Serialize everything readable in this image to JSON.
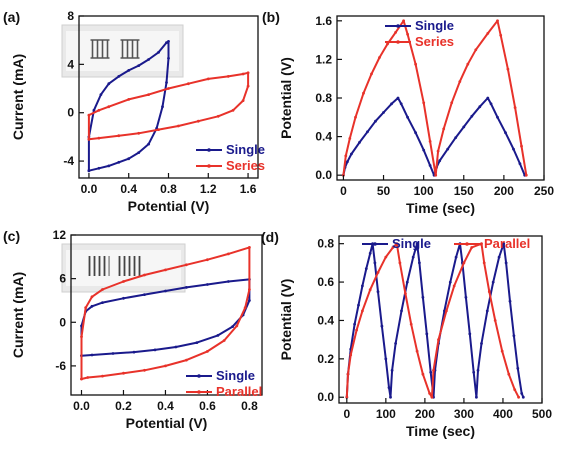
{
  "colors": {
    "single": "#1a1a8c",
    "other": "#e8322a",
    "axis": "#111111"
  },
  "chart_data": [
    {
      "id": "a",
      "panel_label": "(a)",
      "type": "line",
      "xlabel": "Potential (V)",
      "ylabel": "Current (mA)",
      "xlim": [
        -0.1,
        1.7
      ],
      "ylim": [
        -5.4,
        8
      ],
      "xticks": [
        0.0,
        0.4,
        0.8,
        1.2,
        1.6
      ],
      "xtick_labels": [
        "0.0",
        "0.4",
        "0.8",
        "1.2",
        "1.6"
      ],
      "yticks": [
        -4,
        0,
        4,
        8
      ],
      "ytick_labels": [
        "-4",
        "0",
        "4",
        "8"
      ],
      "inset_image": true,
      "inset_icon": "interdigitated-electrodes-in-series-icon",
      "legend_position": "bottom-right",
      "series": [
        {
          "name": "Single",
          "color_key": "single",
          "marker": "dot",
          "closed": true,
          "points": [
            [
              0.0,
              -4.8
            ],
            [
              0.0,
              -2.0
            ],
            [
              0.05,
              0.2
            ],
            [
              0.12,
              1.5
            ],
            [
              0.2,
              2.4
            ],
            [
              0.3,
              3.0
            ],
            [
              0.4,
              3.5
            ],
            [
              0.5,
              3.9
            ],
            [
              0.6,
              4.4
            ],
            [
              0.7,
              5.0
            ],
            [
              0.78,
              5.8
            ],
            [
              0.8,
              5.9
            ],
            [
              0.8,
              4.5
            ],
            [
              0.78,
              2.5
            ],
            [
              0.74,
              0.5
            ],
            [
              0.68,
              -1.3
            ],
            [
              0.6,
              -2.6
            ],
            [
              0.5,
              -3.3
            ],
            [
              0.4,
              -3.8
            ],
            [
              0.3,
              -4.1
            ],
            [
              0.2,
              -4.4
            ],
            [
              0.1,
              -4.6
            ],
            [
              0.0,
              -4.8
            ]
          ]
        },
        {
          "name": "Series",
          "color_key": "other",
          "marker": "dot",
          "closed": true,
          "points": [
            [
              0.0,
              -2.2
            ],
            [
              0.0,
              -0.2
            ],
            [
              0.1,
              0.2
            ],
            [
              0.2,
              0.5
            ],
            [
              0.4,
              1.1
            ],
            [
              0.6,
              1.5
            ],
            [
              0.8,
              2.0
            ],
            [
              1.0,
              2.4
            ],
            [
              1.2,
              2.8
            ],
            [
              1.4,
              3.0
            ],
            [
              1.55,
              3.2
            ],
            [
              1.6,
              3.3
            ],
            [
              1.6,
              2.2
            ],
            [
              1.55,
              1.0
            ],
            [
              1.45,
              0.2
            ],
            [
              1.3,
              -0.3
            ],
            [
              1.1,
              -0.7
            ],
            [
              0.9,
              -1.1
            ],
            [
              0.7,
              -1.4
            ],
            [
              0.5,
              -1.7
            ],
            [
              0.3,
              -1.9
            ],
            [
              0.1,
              -2.1
            ],
            [
              0.0,
              -2.2
            ]
          ]
        }
      ]
    },
    {
      "id": "b",
      "panel_label": "(b)",
      "type": "line",
      "xlabel": "Time (sec)",
      "ylabel": "Potential (V)",
      "xlim": [
        -8,
        250
      ],
      "ylim": [
        -0.05,
        1.65
      ],
      "xticks": [
        0,
        50,
        100,
        150,
        200,
        250
      ],
      "xtick_labels": [
        "0",
        "50",
        "100",
        "150",
        "200",
        "250"
      ],
      "yticks": [
        0.0,
        0.4,
        0.8,
        1.2,
        1.6
      ],
      "ytick_labels": [
        "0.0",
        "0.4",
        "0.8",
        "1.2",
        "1.6"
      ],
      "legend_position": "top-right",
      "series": [
        {
          "name": "Single",
          "color_key": "single",
          "marker": "dot",
          "points": [
            [
              0,
              0.0
            ],
            [
              2,
              0.08
            ],
            [
              5,
              0.14
            ],
            [
              10,
              0.22
            ],
            [
              20,
              0.34
            ],
            [
              30,
              0.45
            ],
            [
              40,
              0.56
            ],
            [
              50,
              0.65
            ],
            [
              60,
              0.74
            ],
            [
              68,
              0.8
            ],
            [
              72,
              0.74
            ],
            [
              80,
              0.6
            ],
            [
              90,
              0.44
            ],
            [
              100,
              0.26
            ],
            [
              108,
              0.1
            ],
            [
              113,
              0.0
            ],
            [
              116,
              0.08
            ],
            [
              120,
              0.15
            ],
            [
              130,
              0.27
            ],
            [
              140,
              0.39
            ],
            [
              150,
              0.5
            ],
            [
              160,
              0.61
            ],
            [
              170,
              0.71
            ],
            [
              180,
              0.8
            ],
            [
              184,
              0.74
            ],
            [
              192,
              0.6
            ],
            [
              202,
              0.44
            ],
            [
              212,
              0.27
            ],
            [
              220,
              0.12
            ],
            [
              226,
              0.0
            ]
          ]
        },
        {
          "name": "Series",
          "color_key": "other",
          "marker": "dot",
          "points": [
            [
              0,
              0.0
            ],
            [
              3,
              0.2
            ],
            [
              8,
              0.38
            ],
            [
              15,
              0.6
            ],
            [
              25,
              0.85
            ],
            [
              35,
              1.05
            ],
            [
              45,
              1.22
            ],
            [
              55,
              1.36
            ],
            [
              65,
              1.48
            ],
            [
              75,
              1.6
            ],
            [
              80,
              1.46
            ],
            [
              90,
              1.15
            ],
            [
              100,
              0.75
            ],
            [
              108,
              0.35
            ],
            [
              115,
              0.0
            ],
            [
              118,
              0.25
            ],
            [
              125,
              0.48
            ],
            [
              135,
              0.75
            ],
            [
              145,
              0.97
            ],
            [
              155,
              1.15
            ],
            [
              165,
              1.3
            ],
            [
              180,
              1.47
            ],
            [
              192,
              1.6
            ],
            [
              196,
              1.45
            ],
            [
              205,
              1.1
            ],
            [
              214,
              0.7
            ],
            [
              222,
              0.3
            ],
            [
              228,
              0.0
            ]
          ]
        }
      ]
    },
    {
      "id": "c",
      "panel_label": "(c)",
      "type": "line",
      "xlabel": "Potential (V)",
      "ylabel": "Current (mA)",
      "xlim": [
        -0.05,
        0.86
      ],
      "ylim": [
        -10,
        12
      ],
      "xticks": [
        0.0,
        0.2,
        0.4,
        0.6,
        0.8
      ],
      "xtick_labels": [
        "0.0",
        "0.2",
        "0.4",
        "0.6",
        "0.8"
      ],
      "yticks": [
        -6,
        0,
        6,
        12
      ],
      "ytick_labels": [
        "-6",
        "0",
        "6",
        "12"
      ],
      "inset_image": true,
      "inset_icon": "interdigitated-electrodes-in-parallel-icon",
      "legend_position": "bottom-right",
      "series": [
        {
          "name": "Single",
          "color_key": "single",
          "marker": "dot",
          "closed": true,
          "points": [
            [
              0.0,
              -4.6
            ],
            [
              0.0,
              -0.5
            ],
            [
              0.02,
              1.5
            ],
            [
              0.05,
              2.2
            ],
            [
              0.1,
              2.7
            ],
            [
              0.2,
              3.3
            ],
            [
              0.3,
              3.8
            ],
            [
              0.4,
              4.3
            ],
            [
              0.5,
              4.8
            ],
            [
              0.6,
              5.2
            ],
            [
              0.7,
              5.6
            ],
            [
              0.8,
              5.9
            ],
            [
              0.8,
              3.0
            ],
            [
              0.77,
              1.0
            ],
            [
              0.72,
              -0.6
            ],
            [
              0.65,
              -1.8
            ],
            [
              0.55,
              -2.8
            ],
            [
              0.45,
              -3.4
            ],
            [
              0.35,
              -3.8
            ],
            [
              0.25,
              -4.1
            ],
            [
              0.15,
              -4.3
            ],
            [
              0.05,
              -4.5
            ],
            [
              0.0,
              -4.6
            ]
          ]
        },
        {
          "name": "Parallel",
          "color_key": "other",
          "marker": "dot",
          "closed": true,
          "points": [
            [
              0.0,
              -7.8
            ],
            [
              0.0,
              -2.0
            ],
            [
              0.02,
              2.0
            ],
            [
              0.05,
              3.5
            ],
            [
              0.1,
              4.5
            ],
            [
              0.2,
              5.6
            ],
            [
              0.3,
              6.5
            ],
            [
              0.4,
              7.2
            ],
            [
              0.5,
              7.9
            ],
            [
              0.6,
              8.6
            ],
            [
              0.7,
              9.4
            ],
            [
              0.8,
              10.3
            ],
            [
              0.8,
              4.5
            ],
            [
              0.78,
              2.0
            ],
            [
              0.74,
              -0.5
            ],
            [
              0.68,
              -2.5
            ],
            [
              0.6,
              -4.0
            ],
            [
              0.5,
              -5.2
            ],
            [
              0.4,
              -6.0
            ],
            [
              0.3,
              -6.6
            ],
            [
              0.2,
              -7.0
            ],
            [
              0.1,
              -7.4
            ],
            [
              0.03,
              -7.6
            ],
            [
              0.0,
              -7.8
            ]
          ]
        }
      ]
    },
    {
      "id": "d",
      "panel_label": "(d)",
      "type": "line",
      "xlabel": "Time (sec)",
      "ylabel": "Potential (V)",
      "xlim": [
        -20,
        500
      ],
      "ylim": [
        -0.03,
        0.84
      ],
      "xticks": [
        0,
        100,
        200,
        300,
        400,
        500
      ],
      "xtick_labels": [
        "0",
        "100",
        "200",
        "300",
        "400",
        "500"
      ],
      "yticks": [
        0.0,
        0.2,
        0.4,
        0.6,
        0.8
      ],
      "ytick_labels": [
        "0.0",
        "0.2",
        "0.4",
        "0.6",
        "0.8"
      ],
      "legend_position": "top",
      "series": [
        {
          "name": "Single",
          "color_key": "single",
          "marker": "dot",
          "points": [
            [
              0,
              0.0
            ],
            [
              3,
              0.12
            ],
            [
              10,
              0.25
            ],
            [
              20,
              0.38
            ],
            [
              30,
              0.48
            ],
            [
              40,
              0.58
            ],
            [
              50,
              0.67
            ],
            [
              60,
              0.75
            ],
            [
              66,
              0.8
            ],
            [
              72,
              0.7
            ],
            [
              80,
              0.55
            ],
            [
              90,
              0.37
            ],
            [
              100,
              0.2
            ],
            [
              108,
              0.05
            ],
            [
              112,
              0.0
            ],
            [
              116,
              0.14
            ],
            [
              125,
              0.28
            ],
            [
              140,
              0.45
            ],
            [
              155,
              0.6
            ],
            [
              170,
              0.73
            ],
            [
              180,
              0.8
            ],
            [
              186,
              0.7
            ],
            [
              195,
              0.52
            ],
            [
              205,
              0.33
            ],
            [
              215,
              0.13
            ],
            [
              222,
              0.0
            ],
            [
              226,
              0.14
            ],
            [
              235,
              0.28
            ],
            [
              250,
              0.45
            ],
            [
              265,
              0.6
            ],
            [
              280,
              0.73
            ],
            [
              290,
              0.8
            ],
            [
              296,
              0.7
            ],
            [
              305,
              0.52
            ],
            [
              315,
              0.33
            ],
            [
              325,
              0.13
            ],
            [
              332,
              0.0
            ],
            [
              336,
              0.14
            ],
            [
              345,
              0.28
            ],
            [
              360,
              0.45
            ],
            [
              375,
              0.6
            ],
            [
              390,
              0.73
            ],
            [
              402,
              0.8
            ],
            [
              408,
              0.7
            ],
            [
              418,
              0.5
            ],
            [
              428,
              0.32
            ],
            [
              438,
              0.15
            ],
            [
              448,
              0.02
            ],
            [
              452,
              0.0
            ]
          ]
        },
        {
          "name": "Parallel",
          "color_key": "other",
          "marker": "dot",
          "points": [
            [
              0,
              0.0
            ],
            [
              3,
              0.12
            ],
            [
              10,
              0.22
            ],
            [
              25,
              0.35
            ],
            [
              40,
              0.45
            ],
            [
              60,
              0.56
            ],
            [
              80,
              0.65
            ],
            [
              100,
              0.73
            ],
            [
              118,
              0.78
            ],
            [
              128,
              0.8
            ],
            [
              136,
              0.7
            ],
            [
              150,
              0.54
            ],
            [
              165,
              0.38
            ],
            [
              180,
              0.24
            ],
            [
              195,
              0.12
            ],
            [
              212,
              0.02
            ],
            [
              218,
              0.0
            ],
            [
              222,
              0.14
            ],
            [
              235,
              0.3
            ],
            [
              255,
              0.45
            ],
            [
              275,
              0.58
            ],
            [
              300,
              0.7
            ],
            [
              320,
              0.78
            ],
            [
              345,
              0.8
            ],
            [
              352,
              0.7
            ],
            [
              365,
              0.55
            ],
            [
              380,
              0.4
            ],
            [
              398,
              0.24
            ],
            [
              415,
              0.12
            ],
            [
              430,
              0.04
            ],
            [
              440,
              0.0
            ]
          ]
        }
      ]
    }
  ]
}
